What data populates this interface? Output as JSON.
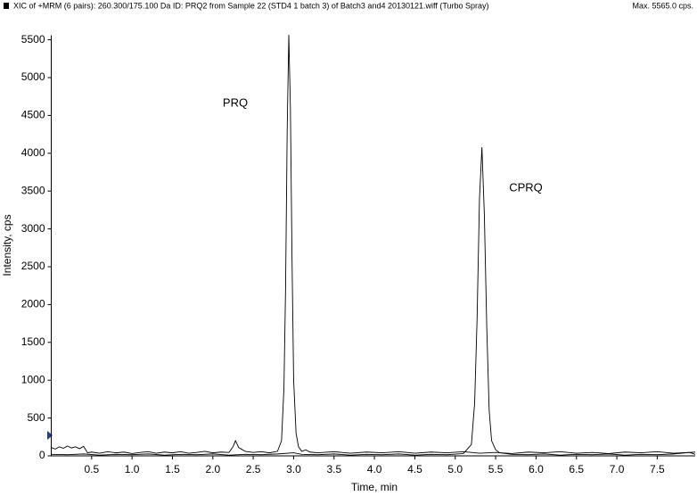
{
  "chart_data": {
    "type": "line",
    "title": "XIC of +MRM (6 pairs): 260.300/175.100 Da ID: PRQ2 from Sample 22 (STD4 1 batch 3) of Batch3 and4 20130121.wiff (Turbo Spray)",
    "max_label": "Max. 5565.0 cps.",
    "x_label": "Time, min",
    "y_label": "Intensity, cps",
    "annotations": [
      "PRQ",
      "CPRQ"
    ],
    "xlim": [
      0,
      7.97
    ],
    "ylim": [
      0,
      5560
    ],
    "xticks": [
      0.5,
      1.0,
      1.5,
      2.0,
      2.5,
      3.0,
      3.5,
      4.0,
      4.5,
      5.0,
      5.5,
      6.0,
      6.5,
      7.0,
      7.5
    ],
    "yticks": [
      0,
      500,
      1000,
      1500,
      2000,
      2500,
      3000,
      3500,
      4000,
      4500,
      5000,
      5500
    ],
    "series": [
      {
        "color": "#000000",
        "x": [
          0,
          0.05,
          0.1,
          0.15,
          0.2,
          0.25,
          0.3,
          0.35,
          0.4,
          0.45,
          0.5,
          0.6,
          0.7,
          0.8,
          0.9,
          1.0,
          1.1,
          1.2,
          1.3,
          1.4,
          1.5,
          1.6,
          1.7,
          1.8,
          1.9,
          2.0,
          2.1,
          2.2,
          2.25,
          2.28,
          2.32,
          2.4,
          2.5,
          2.6,
          2.7,
          2.8,
          2.85,
          2.88,
          2.9,
          2.92,
          2.94,
          2.96,
          2.98,
          3.0,
          3.03,
          3.06,
          3.1,
          3.15,
          3.2,
          3.3,
          3.5,
          3.7,
          3.9,
          4.1,
          4.3,
          4.5,
          4.7,
          4.9,
          5.1,
          5.3,
          5.5,
          5.7,
          5.9,
          6.1,
          6.3,
          6.5,
          6.7,
          6.9,
          7.1,
          7.3,
          7.5,
          7.7,
          7.9,
          7.97
        ],
        "values": [
          110,
          90,
          120,
          100,
          130,
          105,
          120,
          95,
          125,
          40,
          50,
          35,
          55,
          40,
          50,
          30,
          45,
          55,
          35,
          50,
          40,
          55,
          35,
          45,
          60,
          40,
          50,
          45,
          120,
          200,
          110,
          60,
          45,
          55,
          40,
          60,
          200,
          900,
          2200,
          4300,
          5565,
          4600,
          2600,
          1000,
          300,
          120,
          60,
          80,
          50,
          40,
          55,
          35,
          50,
          40,
          55,
          35,
          50,
          40,
          55,
          35,
          45,
          30,
          50,
          40,
          55,
          35,
          45,
          30,
          50,
          40,
          55,
          35,
          45,
          50
        ]
      },
      {
        "color": "#000000",
        "x": [
          0,
          0.2,
          0.4,
          0.6,
          0.8,
          1.0,
          1.2,
          1.4,
          1.6,
          1.8,
          2.0,
          2.2,
          2.4,
          2.6,
          2.8,
          3.0,
          3.1,
          3.3,
          3.5,
          3.7,
          3.9,
          4.1,
          4.3,
          4.5,
          4.7,
          4.9,
          5.1,
          5.2,
          5.24,
          5.27,
          5.3,
          5.33,
          5.36,
          5.39,
          5.42,
          5.45,
          5.5,
          5.55,
          5.7,
          5.9,
          6.1,
          6.3,
          6.5,
          6.7,
          6.9,
          7.1,
          7.3,
          7.5,
          7.7,
          7.9,
          7.97
        ],
        "values": [
          20,
          15,
          25,
          10,
          20,
          15,
          25,
          10,
          20,
          15,
          25,
          10,
          20,
          15,
          25,
          40,
          20,
          15,
          25,
          10,
          20,
          15,
          25,
          10,
          20,
          15,
          30,
          150,
          700,
          1800,
          3400,
          4080,
          3200,
          1700,
          600,
          200,
          80,
          40,
          20,
          15,
          25,
          10,
          20,
          15,
          25,
          10,
          20,
          15,
          25,
          45,
          20
        ]
      }
    ]
  }
}
